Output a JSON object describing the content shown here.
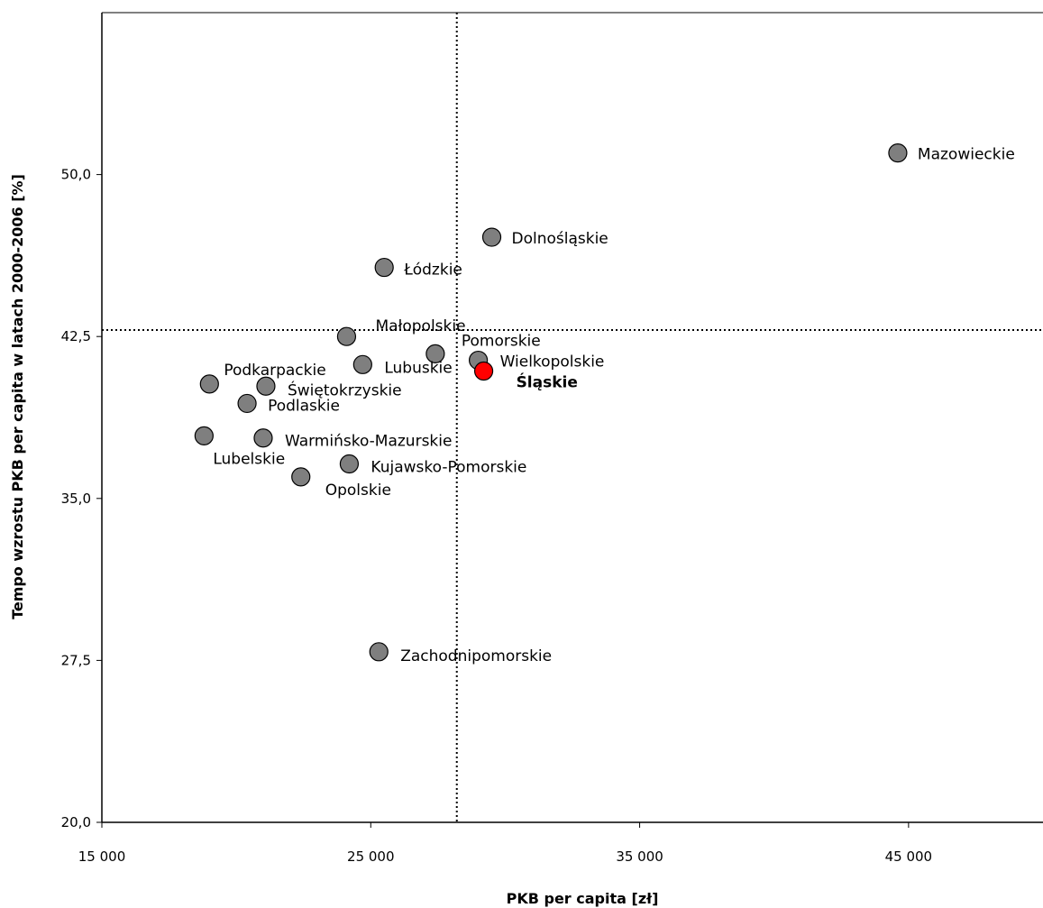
{
  "chart_data": {
    "type": "scatter",
    "title": "",
    "xlabel": "PKB per capita [zł]",
    "ylabel": "Tempo wzrostu PKB per capita w latach 2000-2006 [%]",
    "xlim": [
      15000,
      50000
    ],
    "ylim": [
      20,
      57.5
    ],
    "xticks": [
      15000,
      25000,
      35000,
      45000
    ],
    "xtick_labels": [
      "15 000",
      "25 000",
      "35 000",
      "45 000"
    ],
    "yticks": [
      20,
      27.5,
      35,
      42.5,
      50
    ],
    "ytick_labels": [
      "20,0",
      "27,5",
      "35,0",
      "42,5",
      "50,0"
    ],
    "grid": false,
    "reference_lines": {
      "x": 28200,
      "y": 42.8
    },
    "colors": {
      "default": "#7f7f7f",
      "highlight": "#ff0000",
      "highlight_label": "#8b0000"
    },
    "points": [
      {
        "label": "Mazowieckie",
        "x": 44600,
        "y": 51.0
      },
      {
        "label": "Dolnośląskie",
        "x": 29500,
        "y": 47.1
      },
      {
        "label": "Łódzkie",
        "x": 25500,
        "y": 45.7
      },
      {
        "label": "Małopolskie",
        "x": 24100,
        "y": 42.5
      },
      {
        "label": "Pomorskie",
        "x": 27400,
        "y": 41.7
      },
      {
        "label": "Wielkopolskie",
        "x": 29000,
        "y": 41.4
      },
      {
        "label": "Śląskie",
        "x": 29200,
        "y": 40.9,
        "highlight": true
      },
      {
        "label": "Lubuskie",
        "x": 24700,
        "y": 41.2
      },
      {
        "label": "Podkarpackie",
        "x": 19000,
        "y": 40.3
      },
      {
        "label": "Świętokrzyskie",
        "x": 21100,
        "y": 40.2
      },
      {
        "label": "Podlaskie",
        "x": 20400,
        "y": 39.4
      },
      {
        "label": "Lubelskie",
        "x": 18800,
        "y": 37.9
      },
      {
        "label": "Warmińsko-Mazurskie",
        "x": 21000,
        "y": 37.8
      },
      {
        "label": "Kujawsko-Pomorskie",
        "x": 24200,
        "y": 36.6
      },
      {
        "label": "Opolskie",
        "x": 22400,
        "y": 36.0
      },
      {
        "label": "Zachodnipomorskie",
        "x": 25300,
        "y": 27.9
      }
    ]
  }
}
